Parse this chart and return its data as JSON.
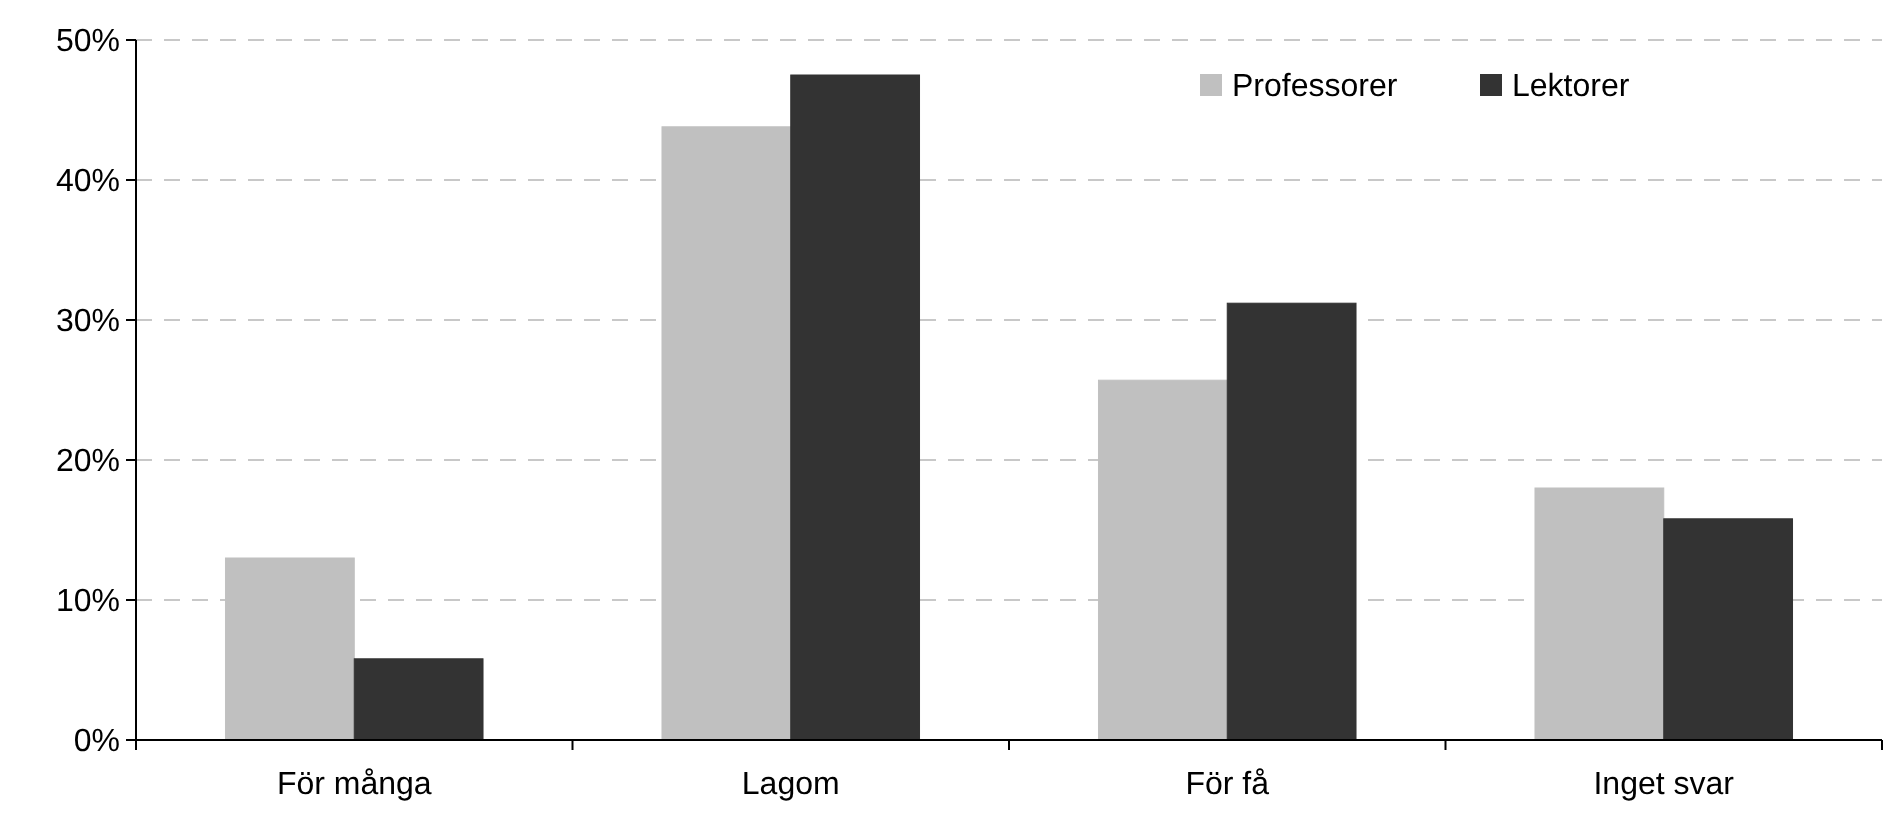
{
  "chart_data": {
    "type": "bar",
    "categories": [
      "För många",
      "Lagom",
      "För få",
      "Inget svar"
    ],
    "series": [
      {
        "name": "Professorer",
        "color": "#c0c0c0",
        "values": [
          13,
          43.8,
          25.7,
          18
        ]
      },
      {
        "name": "Lektorer",
        "color": "#333333",
        "values": [
          5.8,
          47.5,
          31.2,
          15.8
        ]
      }
    ],
    "ylim": [
      0,
      50
    ],
    "yticks": [
      {
        "value": 0,
        "label": "0%"
      },
      {
        "value": 10,
        "label": "10%"
      },
      {
        "value": 20,
        "label": "20%"
      },
      {
        "value": 30,
        "label": "30%"
      },
      {
        "value": 40,
        "label": "40%"
      },
      {
        "value": 50,
        "label": "50%"
      }
    ],
    "grid": "y",
    "legend": "top right"
  }
}
